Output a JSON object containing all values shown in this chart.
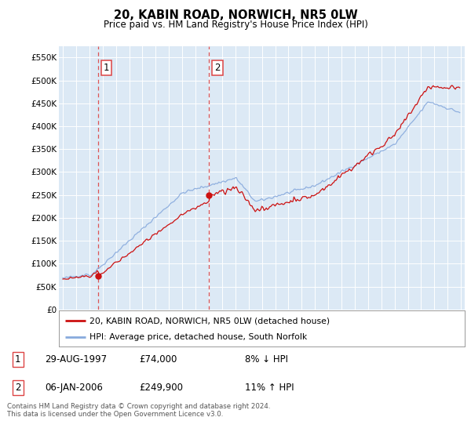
{
  "title": "20, KABIN ROAD, NORWICH, NR5 0LW",
  "subtitle": "Price paid vs. HM Land Registry's House Price Index (HPI)",
  "background_color": "#ffffff",
  "plot_bg_color": "#dce9f5",
  "plot_bg_color2": "#e8f0f8",
  "grid_color": "#ffffff",
  "hpi_line_color": "#88aadd",
  "price_line_color": "#cc1111",
  "dashed_line_color": "#dd4444",
  "sale1_date_num": 1997.65,
  "sale1_price": 74000,
  "sale2_date_num": 2006.02,
  "sale2_price": 249900,
  "ylim_min": 0,
  "ylim_max": 575000,
  "yticks": [
    0,
    50000,
    100000,
    150000,
    200000,
    250000,
    300000,
    350000,
    400000,
    450000,
    500000,
    550000
  ],
  "ytick_labels": [
    "£0",
    "£50K",
    "£100K",
    "£150K",
    "£200K",
    "£250K",
    "£300K",
    "£350K",
    "£400K",
    "£450K",
    "£500K",
    "£550K"
  ],
  "xlim_min": 1994.7,
  "xlim_max": 2025.3,
  "legend_label_red": "20, KABIN ROAD, NORWICH, NR5 0LW (detached house)",
  "legend_label_blue": "HPI: Average price, detached house, South Norfolk",
  "annotation1_date": "29-AUG-1997",
  "annotation1_price_str": "£74,000",
  "annotation1_hpi": "8% ↓ HPI",
  "annotation2_date": "06-JAN-2006",
  "annotation2_price_str": "£249,900",
  "annotation2_hpi": "11% ↑ HPI",
  "footer": "Contains HM Land Registry data © Crown copyright and database right 2024.\nThis data is licensed under the Open Government Licence v3.0."
}
